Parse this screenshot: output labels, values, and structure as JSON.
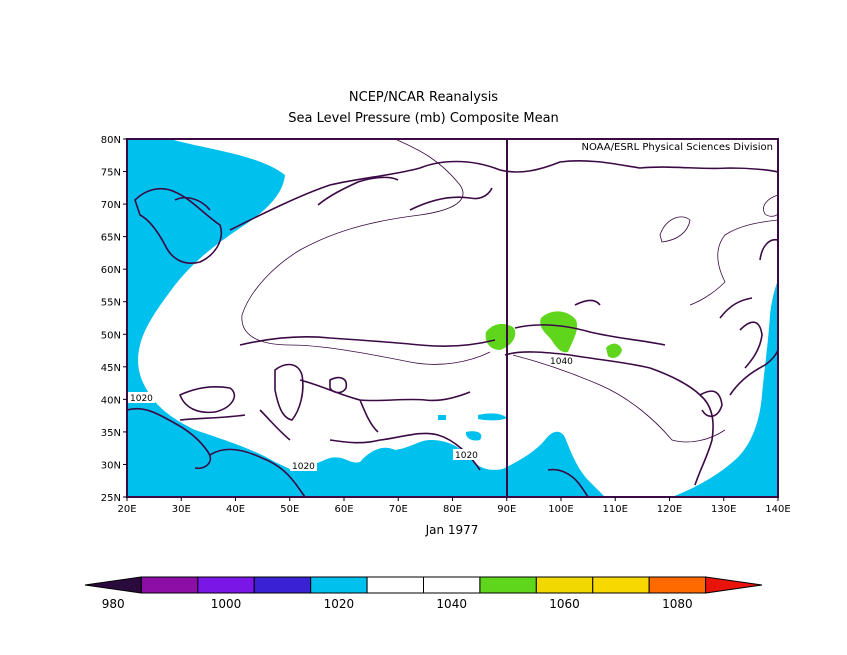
{
  "header": {
    "title": "NCEP/NCAR Reanalysis",
    "subtitle": "Sea Level Pressure (mb) Composite Mean"
  },
  "map": {
    "credit": "NOAA/ESRL Physical Sciences Division",
    "period_label": "Jan 1977",
    "lon_range": [
      20,
      140
    ],
    "lat_range": [
      25,
      80
    ],
    "lon_ticks": [
      "20E",
      "30E",
      "40E",
      "50E",
      "60E",
      "70E",
      "80E",
      "90E",
      "100E",
      "110E",
      "120E",
      "130E",
      "140E"
    ],
    "lat_ticks": [
      "25N",
      "30N",
      "35N",
      "40N",
      "45N",
      "50N",
      "55N",
      "60N",
      "65N",
      "70N",
      "75N",
      "80N"
    ],
    "contour_labels": [
      "1020",
      "1020",
      "1020",
      "1040"
    ]
  },
  "colorbar": {
    "colors": [
      "#2b0a3d",
      "#8d0ea6",
      "#7a16e6",
      "#3a22d4",
      "#00c0ee",
      "#ffffff",
      "#ffffff",
      "#5fd61c",
      "#f0d800",
      "#f7d800",
      "#ff6a00",
      "#e8140c"
    ],
    "labels": [
      "980",
      "1000",
      "1020",
      "1040",
      "1060",
      "1080"
    ],
    "unit": "mb"
  },
  "colors": {
    "low_fill": "#00c0ee",
    "high_fill": "#5fd61c",
    "coast": "#3b0a45"
  }
}
